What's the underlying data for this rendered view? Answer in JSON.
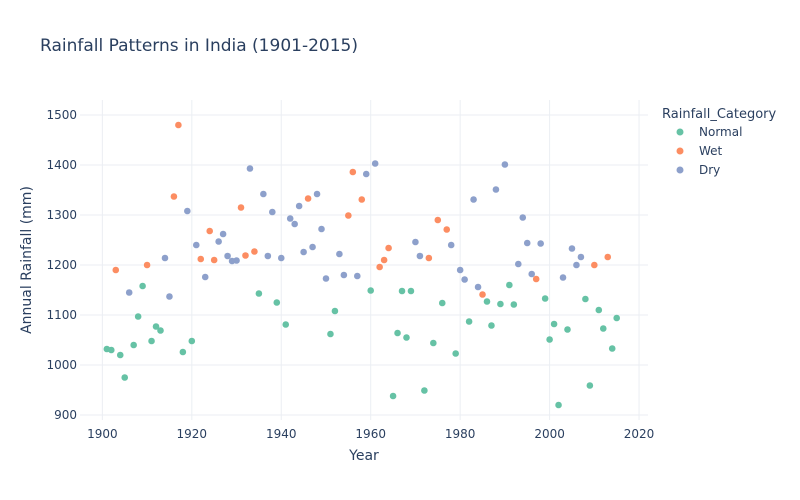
{
  "chart_data": {
    "type": "scatter",
    "title": "Rainfall Patterns in India (1901-2015)",
    "xlabel": "Year",
    "ylabel": "Annual Rainfall (mm)",
    "xlim": [
      1895,
      2022
    ],
    "ylim": [
      890,
      1530
    ],
    "xticks": [
      1900,
      1920,
      1940,
      1960,
      1980,
      2000,
      2020
    ],
    "yticks": [
      900,
      1000,
      1100,
      1200,
      1300,
      1400,
      1500
    ],
    "grid": true,
    "legend": {
      "title": "Rainfall_Category",
      "placement": "top-right, outside plot"
    },
    "series": [
      {
        "name": "Normal",
        "color": "#66c2a5",
        "points": [
          [
            1901,
            1032
          ],
          [
            1902,
            1030
          ],
          [
            1904,
            1020
          ],
          [
            1905,
            975
          ],
          [
            1907,
            1040
          ],
          [
            1908,
            1097
          ],
          [
            1909,
            1158
          ],
          [
            1911,
            1048
          ],
          [
            1912,
            1077
          ],
          [
            1913,
            1069
          ],
          [
            1918,
            1026
          ],
          [
            1920,
            1048
          ],
          [
            1935,
            1143
          ],
          [
            1939,
            1125
          ],
          [
            1941,
            1081
          ],
          [
            1951,
            1062
          ],
          [
            1952,
            1108
          ],
          [
            1960,
            1149
          ],
          [
            1965,
            938
          ],
          [
            1966,
            1064
          ],
          [
            1967,
            1148
          ],
          [
            1968,
            1055
          ],
          [
            1969,
            1148
          ],
          [
            1972,
            949
          ],
          [
            1974,
            1044
          ],
          [
            1976,
            1124
          ],
          [
            1979,
            1023
          ],
          [
            1982,
            1087
          ],
          [
            1986,
            1127
          ],
          [
            1987,
            1079
          ],
          [
            1989,
            1122
          ],
          [
            1991,
            1160
          ],
          [
            1992,
            1121
          ],
          [
            1999,
            1133
          ],
          [
            2000,
            1051
          ],
          [
            2001,
            1082
          ],
          [
            2002,
            920
          ],
          [
            2004,
            1071
          ],
          [
            2008,
            1132
          ],
          [
            2009,
            959
          ],
          [
            2011,
            1110
          ],
          [
            2012,
            1073
          ],
          [
            2014,
            1033
          ],
          [
            2015,
            1094
          ]
        ]
      },
      {
        "name": "Wet",
        "color": "#fc8d62",
        "points": [
          [
            1903,
            1190
          ],
          [
            1910,
            1200
          ],
          [
            1916,
            1337
          ],
          [
            1917,
            1480
          ],
          [
            1922,
            1212
          ],
          [
            1924,
            1268
          ],
          [
            1925,
            1210
          ],
          [
            1931,
            1315
          ],
          [
            1932,
            1219
          ],
          [
            1934,
            1227
          ],
          [
            1946,
            1333
          ],
          [
            1955,
            1299
          ],
          [
            1956,
            1386
          ],
          [
            1958,
            1331
          ],
          [
            1962,
            1196
          ],
          [
            1963,
            1210
          ],
          [
            1964,
            1234
          ],
          [
            1973,
            1214
          ],
          [
            1975,
            1290
          ],
          [
            1977,
            1271
          ],
          [
            1985,
            1141
          ],
          [
            1997,
            1172
          ],
          [
            2010,
            1200
          ],
          [
            2013,
            1216
          ]
        ]
      },
      {
        "name": "Dry",
        "color": "#8da0cb",
        "points": [
          [
            1906,
            1145
          ],
          [
            1914,
            1214
          ],
          [
            1915,
            1137
          ],
          [
            1919,
            1308
          ],
          [
            1921,
            1240
          ],
          [
            1923,
            1176
          ],
          [
            1926,
            1247
          ],
          [
            1927,
            1262
          ],
          [
            1928,
            1218
          ],
          [
            1929,
            1208
          ],
          [
            1930,
            1209
          ],
          [
            1933,
            1393
          ],
          [
            1936,
            1342
          ],
          [
            1937,
            1218
          ],
          [
            1938,
            1306
          ],
          [
            1940,
            1214
          ],
          [
            1942,
            1293
          ],
          [
            1943,
            1282
          ],
          [
            1944,
            1318
          ],
          [
            1945,
            1226
          ],
          [
            1947,
            1236
          ],
          [
            1948,
            1342
          ],
          [
            1949,
            1272
          ],
          [
            1950,
            1173
          ],
          [
            1953,
            1222
          ],
          [
            1954,
            1180
          ],
          [
            1957,
            1178
          ],
          [
            1959,
            1382
          ],
          [
            1961,
            1403
          ],
          [
            1970,
            1246
          ],
          [
            1971,
            1218
          ],
          [
            1978,
            1240
          ],
          [
            1980,
            1190
          ],
          [
            1981,
            1171
          ],
          [
            1983,
            1331
          ],
          [
            1984,
            1156
          ],
          [
            1988,
            1351
          ],
          [
            1990,
            1401
          ],
          [
            1993,
            1202
          ],
          [
            1994,
            1295
          ],
          [
            1995,
            1244
          ],
          [
            1996,
            1182
          ],
          [
            1998,
            1243
          ],
          [
            2003,
            1175
          ],
          [
            2005,
            1233
          ],
          [
            2006,
            1200
          ],
          [
            2007,
            1216
          ]
        ]
      }
    ]
  }
}
